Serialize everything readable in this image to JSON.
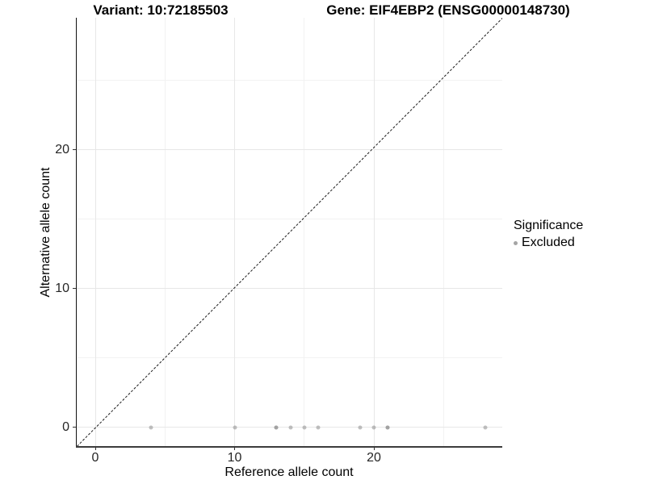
{
  "figure": {
    "title_left": "Variant: 10:72185503",
    "title_right": "Gene: EIF4EBP2 (ENSG00000148730)"
  },
  "chart_data": {
    "type": "scatter",
    "title": "Variant: 10:72185503 — Gene: EIF4EBP2 (ENSG00000148730)",
    "xlabel": "Reference allele count",
    "ylabel": "Alternative allele count",
    "xlim": [
      -1.3,
      29.2
    ],
    "ylim": [
      -1.3,
      29.5
    ],
    "x_major_ticks": [
      0,
      10,
      20
    ],
    "y_major_ticks": [
      0,
      10,
      20
    ],
    "x_minor_gridlines": [
      5,
      15,
      25
    ],
    "y_minor_gridlines": [
      5,
      15,
      25
    ],
    "grid": "major and minor, light gray, white background",
    "reference_line": {
      "kind": "identity y=x",
      "style": "dashed",
      "color": "#1a1a1a"
    },
    "legend": {
      "title": "Significance",
      "position": "right",
      "entries": [
        {
          "label": "Excluded",
          "color": "#a5a5a5"
        }
      ]
    },
    "series": [
      {
        "name": "Excluded",
        "marker_color": "#8c8c8c",
        "marker_alpha": 0.55,
        "points": [
          {
            "x": 4,
            "y": 0
          },
          {
            "x": 10,
            "y": 0
          },
          {
            "x": 13,
            "y": 0
          },
          {
            "x": 13,
            "y": 0
          },
          {
            "x": 14,
            "y": 0
          },
          {
            "x": 15,
            "y": 0
          },
          {
            "x": 16,
            "y": 0
          },
          {
            "x": 19,
            "y": 0
          },
          {
            "x": 20,
            "y": 0
          },
          {
            "x": 21,
            "y": 0
          },
          {
            "x": 21,
            "y": 0
          },
          {
            "x": 28,
            "y": 0
          }
        ]
      }
    ]
  }
}
